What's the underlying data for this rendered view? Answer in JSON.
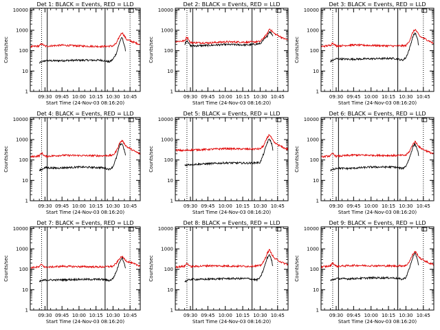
{
  "colors": {
    "black_series": "#000000",
    "red_series": "#e00000",
    "axes": "#000000"
  },
  "chart_data": [
    {
      "type": "line",
      "title": "Det 1: BLACK = Events, RED = LLD",
      "xlabel": "Start Time (24-Nov-03 08:16:20)",
      "ylabel": "Counts/sec",
      "x_ticks": [
        "09:30",
        "09:45",
        "10:00",
        "10:15",
        "10:30",
        "10:45"
      ],
      "y_ticks": [
        "1",
        "10",
        "100",
        "1000",
        "10000"
      ],
      "y_scale": "log",
      "ylim": [
        1,
        12000
      ],
      "xlim": [
        "09:17",
        "10:54"
      ],
      "dotted_marks": [
        "09:27",
        "10:45"
      ],
      "solid_marks": [
        "09:32",
        "10:23"
      ],
      "series": [
        {
          "color": "black",
          "times": [
            "09:25",
            "09:30",
            "09:40",
            "10:00",
            "10:20",
            "10:27",
            "10:30",
            "10:33",
            "10:36",
            "10:38",
            "10:40",
            "10:41"
          ],
          "values": [
            25,
            32,
            32,
            34,
            34,
            28,
            38,
            75,
            280,
            450,
            180,
            100
          ]
        },
        {
          "color": "red",
          "times": [
            "09:17",
            "09:25",
            "09:27",
            "09:30",
            "09:45",
            "10:00",
            "10:20",
            "10:30",
            "10:33",
            "10:36",
            "10:38",
            "10:42",
            "10:50",
            "10:54"
          ],
          "values": [
            155,
            170,
            220,
            165,
            185,
            170,
            160,
            170,
            230,
            540,
            780,
            350,
            240,
            200
          ]
        }
      ]
    },
    {
      "type": "line",
      "title": "Det 2: BLACK = Events, RED = LLD",
      "xlabel": "Start Time (24-Nov-03 08:16:20)",
      "ylabel": "Counts/sec",
      "x_ticks": [
        "09:30",
        "09:45",
        "10:00",
        "10:15",
        "10:30",
        "10:45"
      ],
      "y_ticks": [
        "1",
        "10",
        "100",
        "1000",
        "10000"
      ],
      "y_scale": "log",
      "ylim": [
        1,
        12000
      ],
      "xlim": [
        "09:17",
        "10:54"
      ],
      "dotted_marks": [
        "09:27",
        "10:45"
      ],
      "solid_marks": [
        "09:32",
        "10:23"
      ],
      "series": [
        {
          "color": "black",
          "times": [
            "09:25",
            "09:27",
            "09:30",
            "09:45",
            "10:00",
            "10:20",
            "10:30",
            "10:36",
            "10:38",
            "10:41"
          ],
          "values": [
            200,
            330,
            170,
            180,
            200,
            190,
            220,
            500,
            900,
            550
          ]
        },
        {
          "color": "red",
          "times": [
            "09:17",
            "09:25",
            "09:27",
            "09:30",
            "09:45",
            "10:00",
            "10:20",
            "10:30",
            "10:36",
            "10:38",
            "10:42",
            "10:50",
            "10:54"
          ],
          "values": [
            280,
            300,
            480,
            250,
            240,
            270,
            260,
            280,
            650,
            1200,
            700,
            400,
            330
          ]
        }
      ]
    },
    {
      "type": "line",
      "title": "Det 3: BLACK = Events, RED = LLD",
      "xlabel": "Start Time (24-Nov-03 08:16:20)",
      "ylabel": "Counts/sec",
      "x_ticks": [
        "09:30",
        "09:45",
        "10:00",
        "10:15",
        "10:30",
        "10:45"
      ],
      "y_ticks": [
        "1",
        "10",
        "100",
        "1000",
        "10000"
      ],
      "y_scale": "log",
      "ylim": [
        1,
        12000
      ],
      "xlim": [
        "09:17",
        "10:54"
      ],
      "dotted_marks": [
        "09:27",
        "10:45"
      ],
      "solid_marks": [
        "09:32",
        "10:23"
      ],
      "series": [
        {
          "color": "black",
          "times": [
            "09:25",
            "09:30",
            "09:40",
            "10:00",
            "10:20",
            "10:27",
            "10:30",
            "10:33",
            "10:36",
            "10:38",
            "10:40",
            "10:41"
          ],
          "values": [
            30,
            40,
            38,
            40,
            42,
            34,
            45,
            120,
            500,
            750,
            350,
            180
          ]
        },
        {
          "color": "red",
          "times": [
            "09:17",
            "09:25",
            "09:27",
            "09:30",
            "09:45",
            "10:00",
            "10:20",
            "10:30",
            "10:33",
            "10:36",
            "10:38",
            "10:42",
            "10:50",
            "10:54"
          ],
          "values": [
            160,
            180,
            240,
            170,
            190,
            180,
            170,
            175,
            300,
            800,
            1100,
            500,
            300,
            220
          ]
        }
      ]
    },
    {
      "type": "line",
      "title": "Det 4: BLACK = Events, RED = LLD",
      "xlabel": "Start Time (24-Nov-03 08:16:20)",
      "ylabel": "Counts/sec",
      "x_ticks": [
        "09:30",
        "09:45",
        "10:00",
        "10:15",
        "10:30",
        "10:45"
      ],
      "y_ticks": [
        "1",
        "10",
        "100",
        "1000",
        "10000"
      ],
      "y_scale": "log",
      "ylim": [
        1,
        12000
      ],
      "xlim": [
        "09:17",
        "10:54"
      ],
      "dotted_marks": [
        "09:27",
        "10:45"
      ],
      "solid_marks": [
        "09:32",
        "10:23"
      ],
      "series": [
        {
          "color": "black",
          "times": [
            "09:25",
            "09:30",
            "09:40",
            "10:00",
            "10:20",
            "10:27",
            "10:30",
            "10:33",
            "10:36",
            "10:38",
            "10:40",
            "10:41"
          ],
          "values": [
            30,
            42,
            40,
            45,
            42,
            35,
            48,
            130,
            550,
            650,
            300,
            160
          ]
        },
        {
          "color": "red",
          "times": [
            "09:17",
            "09:25",
            "09:27",
            "09:30",
            "09:45",
            "10:00",
            "10:20",
            "10:30",
            "10:33",
            "10:36",
            "10:38",
            "10:42",
            "10:50",
            "10:54"
          ],
          "values": [
            140,
            160,
            220,
            150,
            170,
            165,
            160,
            170,
            280,
            700,
            900,
            450,
            250,
            200
          ]
        }
      ]
    },
    {
      "type": "line",
      "title": "Det 5: BLACK = Events, RED = LLD",
      "xlabel": "Start Time (24-Nov-03 08:16:20)",
      "ylabel": "Counts/sec",
      "x_ticks": [
        "09:30",
        "09:45",
        "10:00",
        "10:15",
        "10:30",
        "10:45"
      ],
      "y_ticks": [
        "1",
        "10",
        "100",
        "1000",
        "10000"
      ],
      "y_scale": "log",
      "ylim": [
        1,
        12000
      ],
      "xlim": [
        "09:17",
        "10:54"
      ],
      "dotted_marks": [
        "09:27",
        "10:45"
      ],
      "solid_marks": [
        "09:32",
        "10:23"
      ],
      "series": [
        {
          "color": "black",
          "times": [
            "09:25",
            "09:30",
            "09:45",
            "10:00",
            "10:20",
            "10:30",
            "10:33",
            "10:36",
            "10:38",
            "10:40",
            "10:41"
          ],
          "values": [
            55,
            60,
            65,
            72,
            70,
            75,
            200,
            700,
            1100,
            600,
            300
          ]
        },
        {
          "color": "red",
          "times": [
            "09:17",
            "09:25",
            "09:30",
            "09:45",
            "10:00",
            "10:20",
            "10:30",
            "10:33",
            "10:36",
            "10:38",
            "10:42",
            "10:50",
            "10:54"
          ],
          "values": [
            300,
            290,
            310,
            330,
            360,
            340,
            350,
            500,
            1200,
            1800,
            700,
            400,
            330
          ]
        }
      ]
    },
    {
      "type": "line",
      "title": "Det 6: BLACK = Events, RED = LLD",
      "xlabel": "Start Time (24-Nov-03 08:16:20)",
      "ylabel": "Counts/sec",
      "x_ticks": [
        "09:30",
        "09:45",
        "10:00",
        "10:15",
        "10:30",
        "10:45"
      ],
      "y_ticks": [
        "1",
        "10",
        "100",
        "1000",
        "10000"
      ],
      "y_scale": "log",
      "ylim": [
        1,
        12000
      ],
      "xlim": [
        "09:17",
        "10:54"
      ],
      "dotted_marks": [
        "09:27",
        "10:45"
      ],
      "solid_marks": [
        "09:32",
        "10:23"
      ],
      "series": [
        {
          "color": "black",
          "times": [
            "09:25",
            "09:30",
            "09:40",
            "10:00",
            "10:20",
            "10:27",
            "10:30",
            "10:33",
            "10:36",
            "10:38",
            "10:40",
            "10:41"
          ],
          "values": [
            30,
            40,
            38,
            45,
            45,
            38,
            50,
            120,
            450,
            600,
            300,
            160
          ]
        },
        {
          "color": "red",
          "times": [
            "09:17",
            "09:25",
            "09:27",
            "09:30",
            "09:45",
            "10:00",
            "10:20",
            "10:30",
            "10:33",
            "10:36",
            "10:38",
            "10:42",
            "10:50",
            "10:54"
          ],
          "values": [
            140,
            160,
            210,
            150,
            175,
            170,
            165,
            170,
            260,
            600,
            800,
            400,
            240,
            200
          ]
        }
      ]
    },
    {
      "type": "line",
      "title": "Det 7: BLACK = Events, RED = LLD",
      "xlabel": "Start Time (24-Nov-03 08:16:20)",
      "ylabel": "Counts/sec",
      "x_ticks": [
        "09:30",
        "09:45",
        "10:00",
        "10:15",
        "10:30",
        "10:45"
      ],
      "y_ticks": [
        "1",
        "10",
        "100",
        "1000",
        "10000"
      ],
      "y_scale": "log",
      "ylim": [
        1,
        12000
      ],
      "xlim": [
        "09:17",
        "10:54"
      ],
      "dotted_marks": [
        "09:27",
        "10:45"
      ],
      "solid_marks": [
        "09:32",
        "10:23"
      ],
      "series": [
        {
          "color": "black",
          "times": [
            "09:25",
            "09:30",
            "09:40",
            "10:00",
            "10:20",
            "10:27",
            "10:30",
            "10:33",
            "10:36",
            "10:38",
            "10:40",
            "10:41"
          ],
          "values": [
            25,
            30,
            30,
            32,
            32,
            28,
            35,
            80,
            250,
            380,
            200,
            100
          ]
        },
        {
          "color": "red",
          "times": [
            "09:17",
            "09:25",
            "09:27",
            "09:30",
            "09:45",
            "10:00",
            "10:20",
            "10:30",
            "10:33",
            "10:36",
            "10:38",
            "10:42",
            "10:50",
            "10:54"
          ],
          "values": [
            120,
            130,
            180,
            125,
            140,
            135,
            130,
            140,
            200,
            350,
            420,
            250,
            170,
            150
          ]
        }
      ]
    },
    {
      "type": "line",
      "title": "Det 8: BLACK = Events, RED = LLD",
      "xlabel": "Start Time (24-Nov-03 08:16:20)",
      "ylabel": "Counts/sec",
      "x_ticks": [
        "09:30",
        "09:45",
        "10:00",
        "10:15",
        "10:30",
        "10:45"
      ],
      "y_ticks": [
        "1",
        "10",
        "100",
        "1000",
        "10000"
      ],
      "y_scale": "log",
      "ylim": [
        1,
        12000
      ],
      "xlim": [
        "09:17",
        "10:54"
      ],
      "dotted_marks": [
        "09:27",
        "10:45"
      ],
      "solid_marks": [
        "09:32",
        "10:23"
      ],
      "series": [
        {
          "color": "black",
          "times": [
            "09:25",
            "09:30",
            "09:40",
            "10:00",
            "10:20",
            "10:27",
            "10:30",
            "10:33",
            "10:36",
            "10:38",
            "10:40",
            "10:41"
          ],
          "values": [
            25,
            32,
            32,
            35,
            35,
            30,
            38,
            100,
            350,
            550,
            250,
            130
          ]
        },
        {
          "color": "red",
          "times": [
            "09:17",
            "09:25",
            "09:27",
            "09:30",
            "09:45",
            "10:00",
            "10:20",
            "10:30",
            "10:33",
            "10:36",
            "10:38",
            "10:42",
            "10:50",
            "10:54"
          ],
          "values": [
            130,
            140,
            200,
            135,
            150,
            145,
            140,
            150,
            230,
            600,
            900,
            350,
            200,
            170
          ]
        }
      ]
    },
    {
      "type": "line",
      "title": "Det 9: BLACK = Events, RED = LLD",
      "xlabel": "Start Time (24-Nov-03 08:16:20)",
      "ylabel": "Counts/sec",
      "x_ticks": [
        "09:30",
        "09:45",
        "10:00",
        "10:15",
        "10:30",
        "10:45"
      ],
      "y_ticks": [
        "1",
        "10",
        "100",
        "1000",
        "10000"
      ],
      "y_scale": "log",
      "ylim": [
        1,
        12000
      ],
      "xlim": [
        "09:17",
        "10:54"
      ],
      "dotted_marks": [
        "09:27",
        "10:45"
      ],
      "solid_marks": [
        "09:32",
        "10:23"
      ],
      "series": [
        {
          "color": "black",
          "times": [
            "09:25",
            "09:30",
            "09:40",
            "10:00",
            "10:20",
            "10:27",
            "10:30",
            "10:33",
            "10:36",
            "10:38",
            "10:40",
            "10:41"
          ],
          "values": [
            28,
            35,
            34,
            38,
            38,
            32,
            40,
            110,
            400,
            600,
            300,
            150
          ]
        },
        {
          "color": "red",
          "times": [
            "09:17",
            "09:25",
            "09:27",
            "09:30",
            "09:45",
            "10:00",
            "10:20",
            "10:30",
            "10:33",
            "10:36",
            "10:38",
            "10:42",
            "10:50",
            "10:54"
          ],
          "values": [
            130,
            145,
            210,
            140,
            155,
            150,
            145,
            150,
            240,
            550,
            750,
            350,
            200,
            170
          ]
        }
      ]
    }
  ]
}
